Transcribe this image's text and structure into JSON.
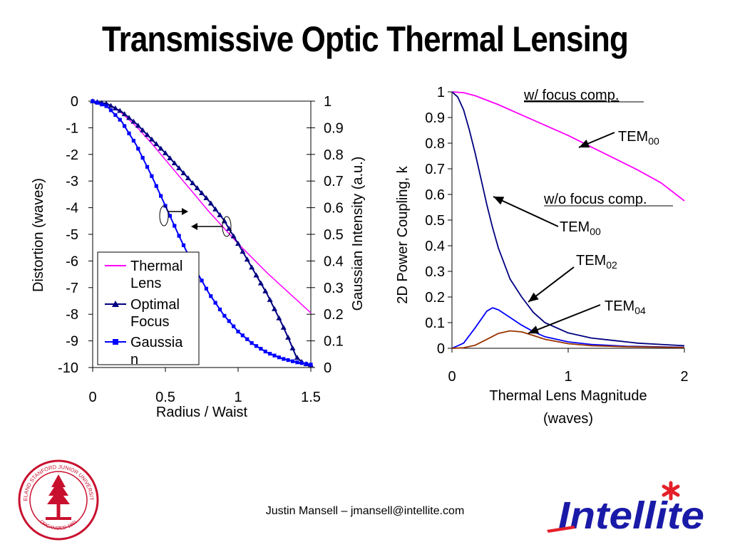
{
  "slide": {
    "title": "Transmissive Optic Thermal Lensing",
    "footer": "Justin Mansell – jmansell@intellite.com",
    "logo_text": "Intellite",
    "seal_text": "LELAND STANFORD JUNIOR UNIVERSITY",
    "seal_bottom_text": "ORGANIZED 1891",
    "colors": {
      "magenta": "#ff00ff",
      "navy": "#000080",
      "blue": "#0000ff",
      "brown": "#993300",
      "logo_blue": "#1a1aa8",
      "logo_red": "#e4202a",
      "seal_red": "#c8102e"
    }
  },
  "chart_data": [
    {
      "type": "line",
      "xlabel": "Radius / Waist",
      "ylabel": "Distortion (waves)",
      "ylabel_right": "Gaussian Intensity (a.u.)",
      "xlim": [
        0,
        1.5
      ],
      "ylim": [
        -10,
        0
      ],
      "ylim_right": [
        0,
        1
      ],
      "xticks": [
        "0",
        "0.5",
        "1",
        "1.5"
      ],
      "yticks": [
        "0",
        "-1",
        "-2",
        "-3",
        "-4",
        "-5",
        "-6",
        "-7",
        "-8",
        "-9",
        "-10"
      ],
      "yticks_right": [
        "1",
        "0.9",
        "0.8",
        "0.7",
        "0.6",
        "0.5",
        "0.4",
        "0.3",
        "0.2",
        "0.1",
        "0"
      ],
      "legend_position": "bottom-left inside",
      "grid": false,
      "series": [
        {
          "name": "Thermal Lens",
          "color": "#ff00ff",
          "marker": "none",
          "axis": "left",
          "x": [
            0,
            0.1,
            0.2,
            0.3,
            0.4,
            0.5,
            0.6,
            0.7,
            0.8,
            0.9,
            1.0,
            1.1,
            1.2,
            1.3,
            1.4,
            1.5
          ],
          "y": [
            0,
            -0.1,
            -0.45,
            -0.95,
            -1.55,
            -2.2,
            -2.85,
            -3.5,
            -4.15,
            -4.75,
            -5.35,
            -5.9,
            -6.45,
            -6.95,
            -7.45,
            -7.95
          ]
        },
        {
          "name": "Optimal Focus",
          "color": "#000080",
          "marker": "triangle",
          "axis": "left",
          "x": [
            0,
            0.1,
            0.2,
            0.3,
            0.4,
            0.5,
            0.6,
            0.7,
            0.8,
            0.9,
            1.0,
            1.1,
            1.2,
            1.3,
            1.35,
            1.4,
            1.45,
            1.5
          ],
          "y": [
            0,
            -0.1,
            -0.4,
            -0.85,
            -1.4,
            -1.95,
            -2.55,
            -3.15,
            -3.75,
            -4.45,
            -5.35,
            -6.3,
            -7.25,
            -8.35,
            -8.95,
            -9.6,
            -9.85,
            -9.9
          ]
        },
        {
          "name": "Gaussian",
          "color": "#0000ff",
          "marker": "square",
          "axis": "right",
          "x": [
            0,
            0.1,
            0.2,
            0.3,
            0.4,
            0.5,
            0.6,
            0.7,
            0.8,
            0.9,
            1.0,
            1.1,
            1.2,
            1.3,
            1.4,
            1.5
          ],
          "y": [
            1.0,
            0.98,
            0.923,
            0.835,
            0.726,
            0.607,
            0.487,
            0.375,
            0.278,
            0.198,
            0.135,
            0.089,
            0.056,
            0.034,
            0.02,
            0.011
          ]
        }
      ]
    },
    {
      "type": "line",
      "xlabel": "Thermal Lens Magnitude (waves)",
      "ylabel": "2D Power Coupling, k",
      "xlim": [
        0,
        2
      ],
      "ylim": [
        0,
        1
      ],
      "xticks": [
        "0",
        "1",
        "2"
      ],
      "yticks": [
        "1",
        "0.9",
        "0.8",
        "0.7",
        "0.6",
        "0.5",
        "0.4",
        "0.3",
        "0.2",
        "0.1",
        "0"
      ],
      "grid": false,
      "annotations": {
        "focus_comp": "w/ focus comp.",
        "no_focus_comp": "w/o focus comp.",
        "tem": "TEM",
        "sub00": "00",
        "sub02": "02",
        "sub04": "04"
      },
      "series": [
        {
          "name": "TEM00 w/ focus comp.",
          "color": "#ff00ff",
          "x": [
            0,
            0.1,
            0.2,
            0.4,
            0.6,
            0.8,
            1.0,
            1.2,
            1.4,
            1.6,
            1.8,
            2.0
          ],
          "y": [
            1.0,
            0.997,
            0.985,
            0.95,
            0.91,
            0.87,
            0.83,
            0.785,
            0.74,
            0.695,
            0.645,
            0.575
          ]
        },
        {
          "name": "TEM00 w/o focus comp.",
          "color": "#000080",
          "x": [
            0,
            0.05,
            0.1,
            0.15,
            0.2,
            0.25,
            0.3,
            0.35,
            0.4,
            0.5,
            0.6,
            0.7,
            0.8,
            1.0,
            1.2,
            1.4,
            1.6,
            1.8,
            2.0
          ],
          "y": [
            1.0,
            0.98,
            0.93,
            0.85,
            0.76,
            0.66,
            0.56,
            0.47,
            0.39,
            0.27,
            0.2,
            0.14,
            0.1,
            0.06,
            0.04,
            0.03,
            0.02,
            0.015,
            0.01
          ]
        },
        {
          "name": "TEM02",
          "color": "#0000ff",
          "x": [
            0,
            0.1,
            0.2,
            0.3,
            0.35,
            0.4,
            0.5,
            0.6,
            0.7,
            0.8,
            1.0,
            1.2,
            1.5,
            2.0
          ],
          "y": [
            0,
            0.02,
            0.08,
            0.145,
            0.158,
            0.15,
            0.12,
            0.09,
            0.065,
            0.045,
            0.025,
            0.015,
            0.008,
            0.004
          ]
        },
        {
          "name": "TEM04",
          "color": "#993300",
          "x": [
            0,
            0.1,
            0.2,
            0.3,
            0.4,
            0.5,
            0.6,
            0.7,
            0.8,
            1.0,
            1.2,
            1.5,
            2.0
          ],
          "y": [
            0,
            0.002,
            0.012,
            0.035,
            0.058,
            0.068,
            0.064,
            0.05,
            0.035,
            0.018,
            0.01,
            0.006,
            0.003
          ]
        }
      ]
    }
  ]
}
